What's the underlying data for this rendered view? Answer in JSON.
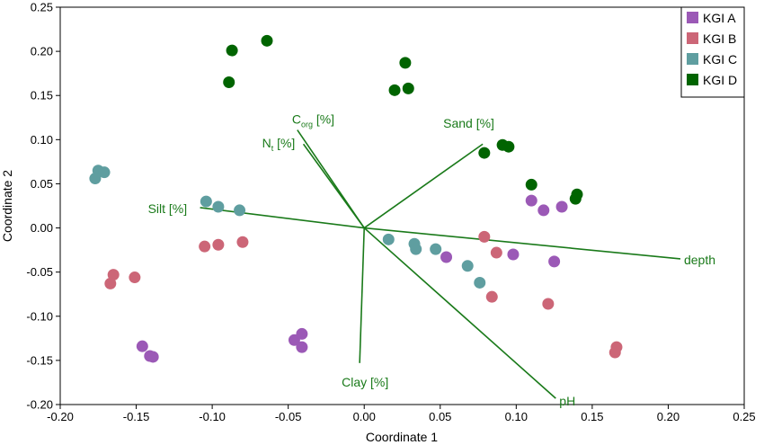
{
  "chart_data": {
    "type": "scatter",
    "xlabel": "Coordinate 1",
    "ylabel": "Coordinate 2",
    "xlim": [
      -0.2,
      0.25
    ],
    "ylim": [
      -0.2,
      0.25
    ],
    "xticks": [
      "-0.20",
      "-0.15",
      "-0.10",
      "-0.05",
      "0.00",
      "0.05",
      "0.10",
      "0.15",
      "0.20",
      "0.25"
    ],
    "yticks": [
      "-0.20",
      "-0.15",
      "-0.10",
      "-0.05",
      "0.00",
      "0.05",
      "0.10",
      "0.15",
      "0.20",
      "0.25"
    ],
    "legend_position": "top-right",
    "series": [
      {
        "name": "KGI A",
        "color": "#9b59b6",
        "points": [
          [
            0.11,
            0.031
          ],
          [
            0.118,
            0.02
          ],
          [
            0.13,
            0.024
          ],
          [
            0.054,
            -0.033
          ],
          [
            0.098,
            -0.03
          ],
          [
            0.125,
            -0.038
          ],
          [
            -0.146,
            -0.134
          ],
          [
            -0.141,
            -0.145
          ],
          [
            -0.139,
            -0.146
          ],
          [
            -0.046,
            -0.127
          ],
          [
            -0.041,
            -0.12
          ],
          [
            -0.041,
            -0.135
          ]
        ]
      },
      {
        "name": "KGI B",
        "color": "#cc6677",
        "points": [
          [
            0.079,
            -0.01
          ],
          [
            0.087,
            -0.028
          ],
          [
            0.084,
            -0.078
          ],
          [
            0.121,
            -0.086
          ],
          [
            0.166,
            -0.135
          ],
          [
            0.165,
            -0.141
          ],
          [
            -0.105,
            -0.021
          ],
          [
            -0.096,
            -0.019
          ],
          [
            -0.08,
            -0.016
          ],
          [
            -0.165,
            -0.053
          ],
          [
            -0.167,
            -0.063
          ],
          [
            -0.151,
            -0.056
          ]
        ]
      },
      {
        "name": "KGI C",
        "color": "#5f9ea0",
        "points": [
          [
            -0.175,
            0.065
          ],
          [
            -0.171,
            0.063
          ],
          [
            -0.177,
            0.056
          ],
          [
            -0.104,
            0.03
          ],
          [
            -0.096,
            0.024
          ],
          [
            -0.082,
            0.02
          ],
          [
            0.016,
            -0.013
          ],
          [
            0.033,
            -0.018
          ],
          [
            0.034,
            -0.024
          ],
          [
            0.047,
            -0.024
          ],
          [
            0.068,
            -0.043
          ],
          [
            0.076,
            -0.062
          ]
        ]
      },
      {
        "name": "KGI D",
        "color": "#006400",
        "points": [
          [
            -0.087,
            0.201
          ],
          [
            -0.064,
            0.212
          ],
          [
            -0.089,
            0.165
          ],
          [
            0.027,
            0.187
          ],
          [
            0.02,
            0.156
          ],
          [
            0.029,
            0.158
          ],
          [
            0.079,
            0.085
          ],
          [
            0.091,
            0.094
          ],
          [
            0.095,
            0.092
          ],
          [
            0.11,
            0.049
          ],
          [
            0.14,
            0.038
          ],
          [
            0.139,
            0.033
          ]
        ]
      }
    ],
    "vectors": [
      {
        "label": "depth",
        "x": 0.208,
        "y": -0.035
      },
      {
        "label": "pH",
        "x": 0.126,
        "y": -0.193
      },
      {
        "label": "Sand [%]",
        "x": 0.078,
        "y": 0.095
      },
      {
        "label": "Clay [%]",
        "x": -0.003,
        "y": -0.153
      },
      {
        "label": "Silt [%]",
        "x": -0.108,
        "y": 0.023
      },
      {
        "label": "Nt [%]",
        "label_main": "N",
        "label_sub": "t",
        "label_tail": " [%]",
        "x": -0.04,
        "y": 0.095
      },
      {
        "label": "Corg [%]",
        "label_main": "C",
        "label_sub": "org",
        "label_tail": " [%]",
        "x": -0.044,
        "y": 0.111
      }
    ],
    "vector_color": "#1a7a1a"
  }
}
